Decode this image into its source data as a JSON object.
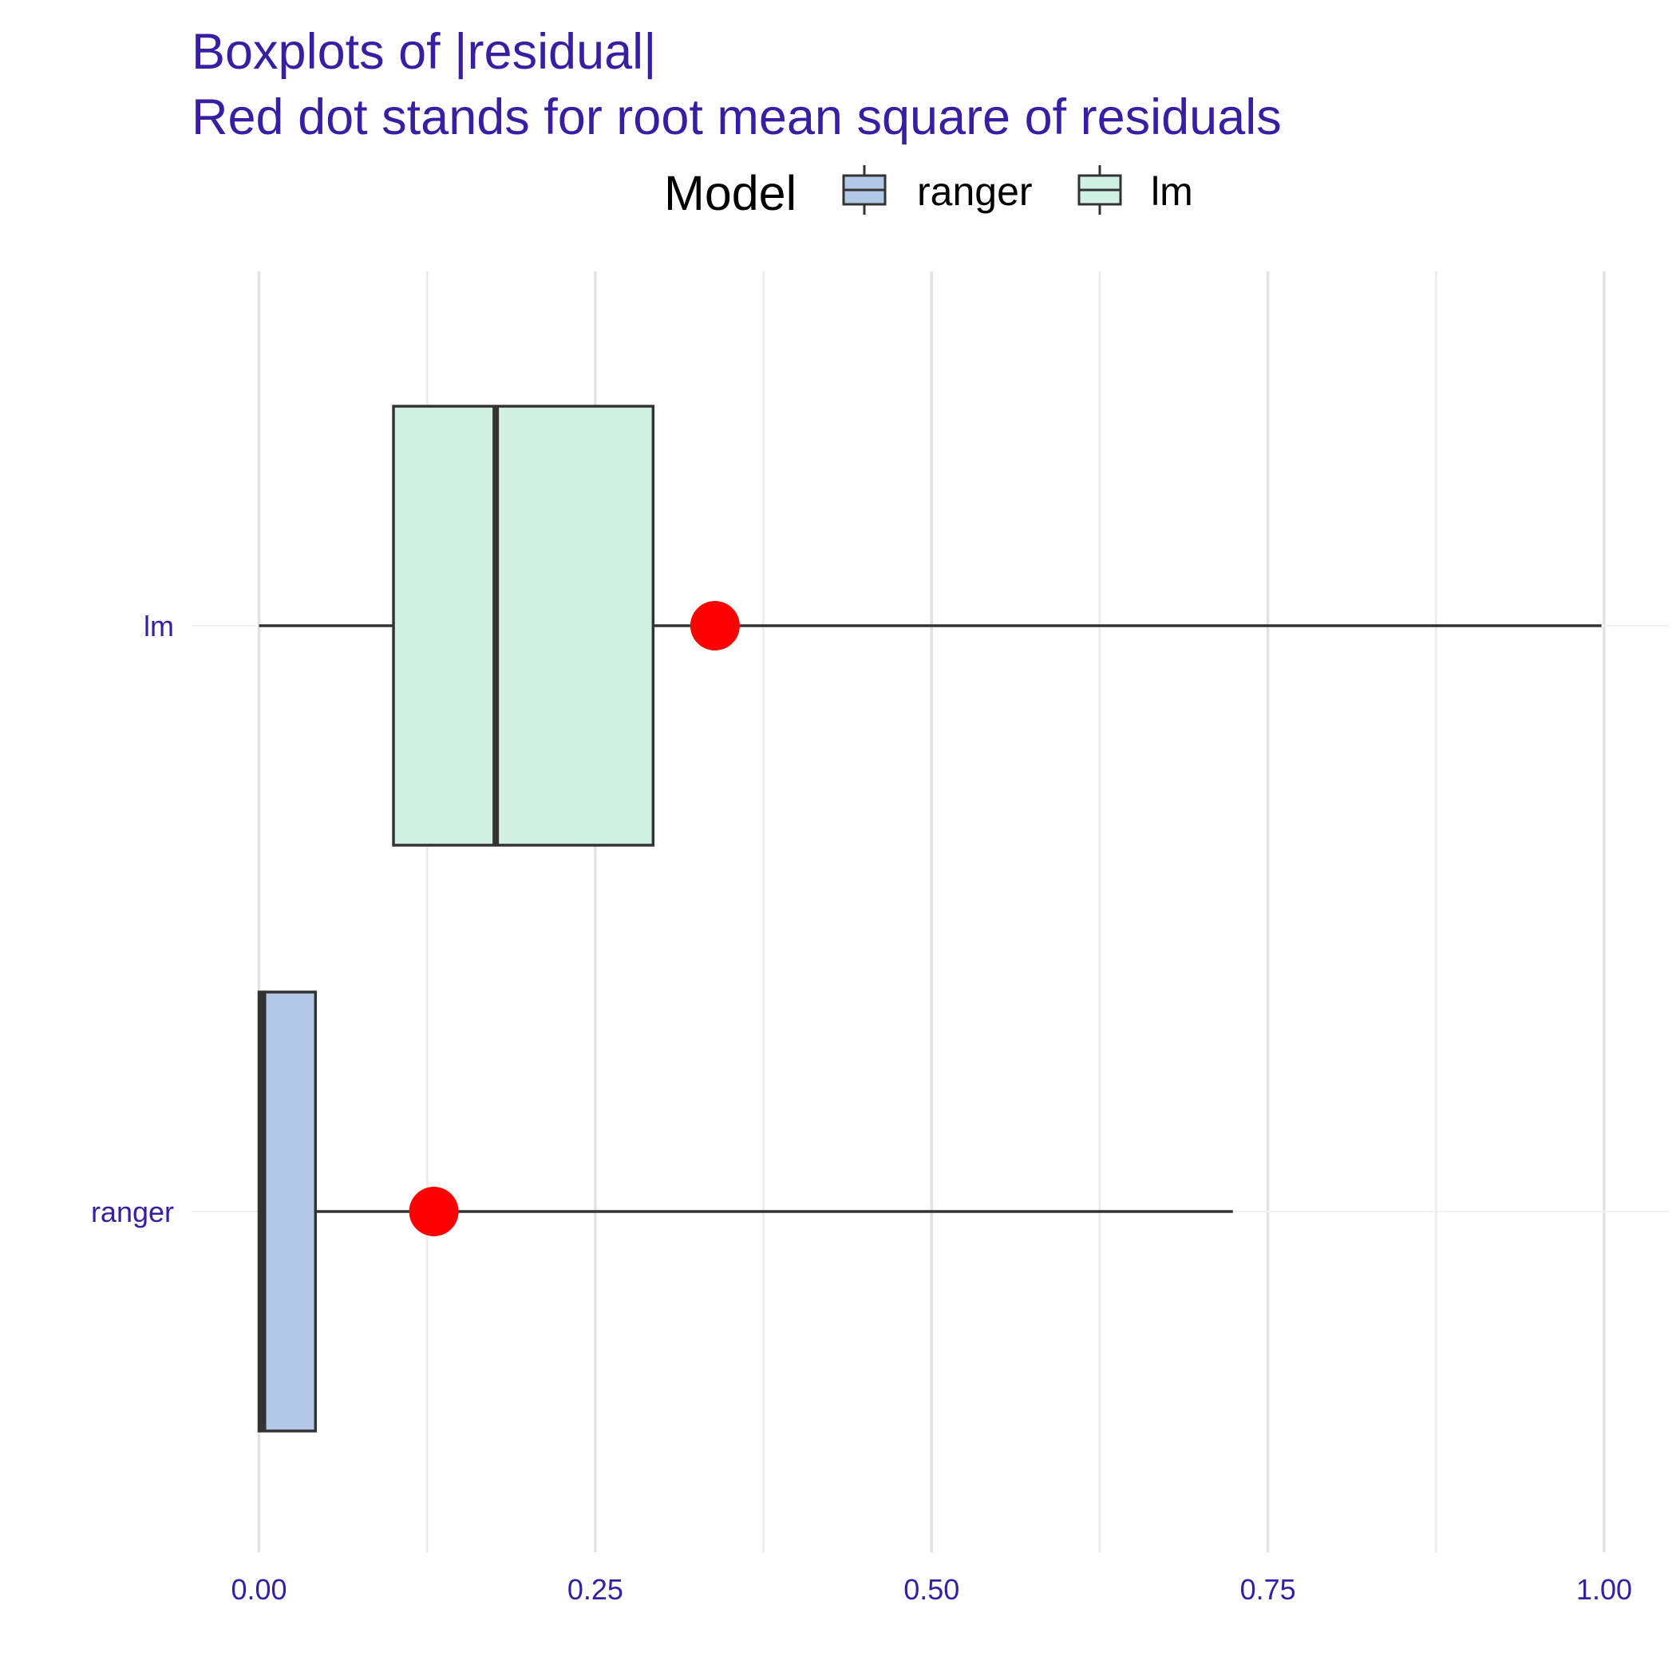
{
  "chart_data": {
    "type": "boxplot",
    "title": "Boxplots of |residual|",
    "subtitle": "Red dot stands for root mean square of residuals",
    "legend": {
      "title": "Model",
      "position": "top",
      "entries": [
        "ranger",
        "lm"
      ]
    },
    "orientation": "horizontal",
    "categories": [
      "lm",
      "ranger"
    ],
    "xlim": [
      -0.05,
      1.05
    ],
    "x_ticks": [
      "0.00",
      "0.25",
      "0.50",
      "0.75",
      "1.00"
    ],
    "x_tick_values": [
      0,
      0.25,
      0.5,
      0.75,
      1.0
    ],
    "grid": true,
    "series": [
      {
        "name": "lm",
        "min": 0.0,
        "q1": 0.1,
        "median": 0.176,
        "q3": 0.293,
        "max": 0.998,
        "rmse": 0.339,
        "fill": "#d2f0e4"
      },
      {
        "name": "ranger",
        "min": 0.0,
        "q1": 0.0,
        "median": 0.003,
        "q3": 0.042,
        "max": 0.724,
        "rmse": 0.13,
        "fill": "#b3c8e6"
      }
    ],
    "rmse_color": "#ff0000",
    "text_color": "#371ea3"
  }
}
